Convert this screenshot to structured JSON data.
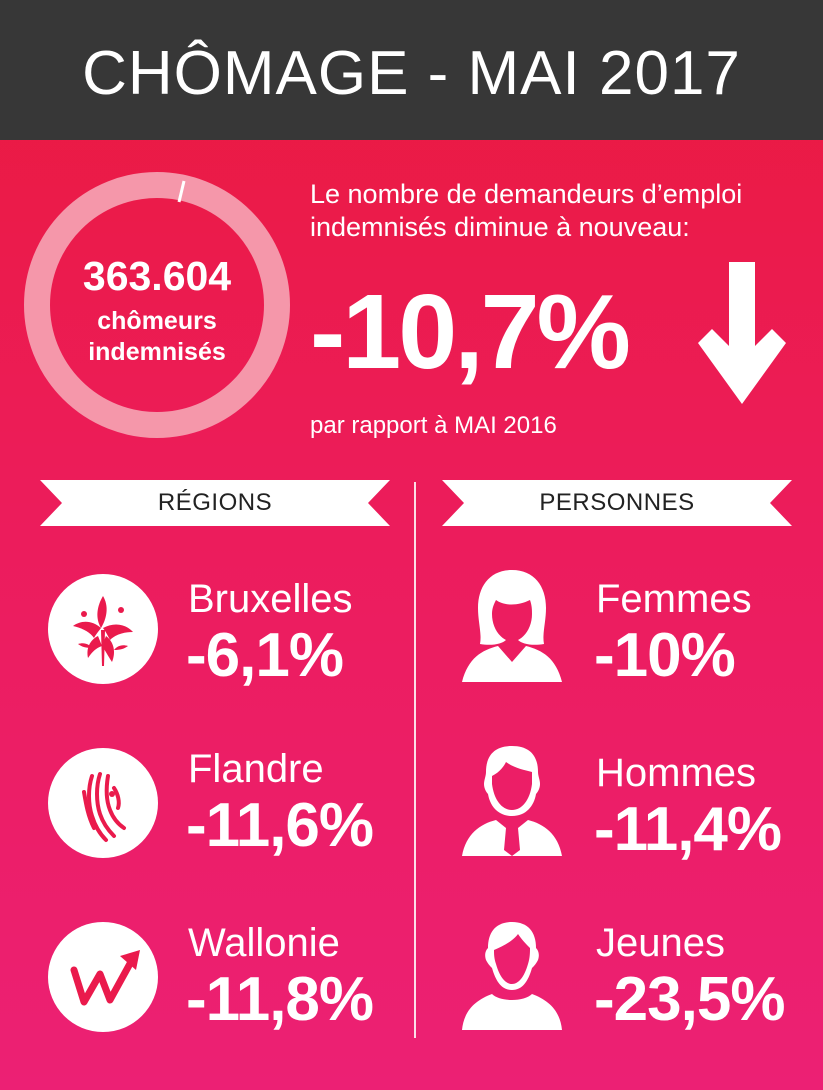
{
  "header": {
    "title": "CHÔMAGE - MAI 2017"
  },
  "summary": {
    "count": "363.604",
    "count_label_line1": "chômeurs",
    "count_label_line2": "indemnisés",
    "intro_line1": "Le nombre de demandeurs d’emploi",
    "intro_line2": "indemnisés diminue à nouveau:",
    "change": "-10,7%",
    "comparison": "par rapport à MAI 2016"
  },
  "regions": {
    "heading": "RÉGIONS",
    "items": [
      {
        "name": "Bruxelles",
        "value": "-6,1%",
        "icon": "brussels-iris-icon"
      },
      {
        "name": "Flandre",
        "value": "-11,6%",
        "icon": "flemish-lion-icon"
      },
      {
        "name": "Wallonie",
        "value": "-11,8%",
        "icon": "wallonia-w-icon"
      }
    ]
  },
  "persons": {
    "heading": "PERSONNES",
    "items": [
      {
        "name": "Femmes",
        "value": "-10%",
        "icon": "woman-icon"
      },
      {
        "name": "Hommes",
        "value": "-11,4%",
        "icon": "man-icon"
      },
      {
        "name": "Jeunes",
        "value": "-23,5%",
        "icon": "young-person-icon"
      }
    ]
  },
  "colors": {
    "header_bg": "#373737",
    "background_top": "#ea1a3e",
    "background_bottom": "#ec2074",
    "ring": "#f597aa",
    "text": "#ffffff"
  }
}
